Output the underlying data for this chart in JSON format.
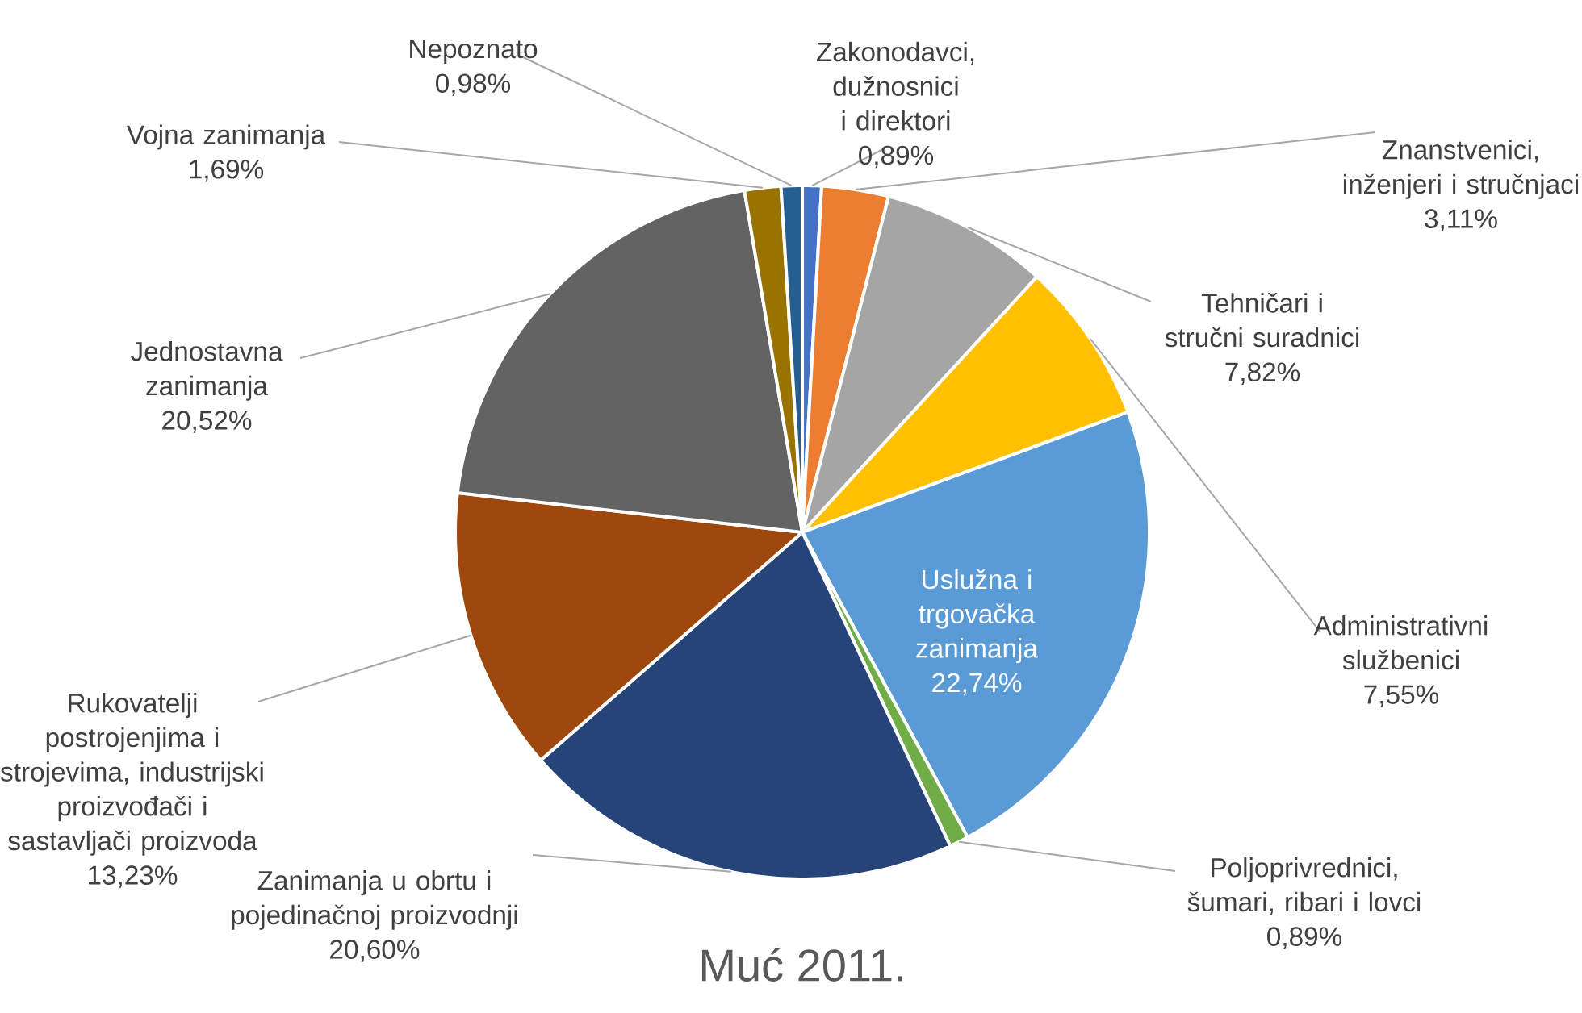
{
  "chart_data": {
    "type": "pie",
    "title": "Muć 2011.",
    "categories": [
      "Zakonodavci, dužnosnici i direktori",
      "Znanstvenici, inženjeri i stručnjaci",
      "Tehničari i stručni suradnici",
      "Administrativni službenici",
      "Uslužna i trgovačka zanimanja",
      "Poljoprivrednici, šumari, ribari i lovci",
      "Zanimanja u obrtu i pojedinačnoj proizvodnji",
      "Rukovatelji postrojenjima i strojevima, industrijski proizvođači i sastavljači proizvoda",
      "Jednostavna zanimanja",
      "Vojna zanimanja",
      "Nepoznato"
    ],
    "values": [
      0.89,
      3.11,
      7.82,
      7.55,
      22.74,
      0.89,
      20.6,
      13.23,
      20.52,
      1.69,
      0.98
    ],
    "colors": [
      "#4472c4",
      "#ed7d31",
      "#a5a5a5",
      "#ffc000",
      "#5b9bd5",
      "#70ad47",
      "#264478",
      "#9e480e",
      "#636363",
      "#997300",
      "#255e91"
    ],
    "value_labels": [
      "0,89%",
      "3,11%",
      "7,82%",
      "7,55%",
      "22,74%",
      "0,89%",
      "20,60%",
      "13,23%",
      "20,52%",
      "1,69%",
      "0,98%"
    ]
  }
}
